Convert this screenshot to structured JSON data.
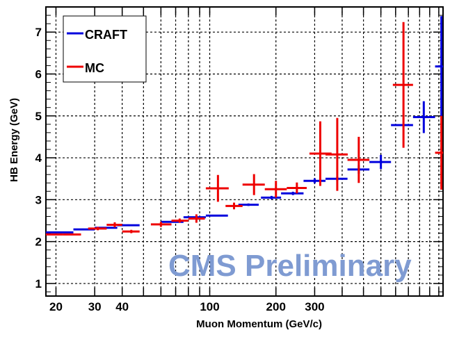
{
  "chart_data": {
    "type": "scatter",
    "title": "",
    "xlabel": "Muon Momentum (GeV/c)",
    "ylabel": "HB Energy (GeV)",
    "xscale": "log",
    "xlim": [
      18,
      1150
    ],
    "ylim": [
      0.7,
      7.6
    ],
    "grid": true,
    "legend_position": "top-left",
    "xticks": [
      20,
      30,
      40,
      100,
      200,
      300
    ],
    "yticks": [
      1,
      2,
      3,
      4,
      5,
      6,
      7
    ],
    "watermark": "CMS Preliminary",
    "colors": {
      "CRAFT": "#0000dd",
      "MC": "#ee0000",
      "watermark": "#7f9bd2"
    },
    "series": [
      {
        "name": "CRAFT",
        "color": "#0000dd",
        "points": [
          {
            "x": 21,
            "xlo": 18,
            "xhi": 24,
            "y": 2.22,
            "yerr": 0.02
          },
          {
            "x": 26.5,
            "xlo": 24,
            "xhi": 30,
            "y": 2.29,
            "yerr": 0.02
          },
          {
            "x": 33.5,
            "xlo": 30,
            "xhi": 38,
            "y": 2.33,
            "yerr": 0.02
          },
          {
            "x": 42.5,
            "xlo": 38,
            "xhi": 48,
            "y": 2.39,
            "yerr": 0.02
          },
          {
            "x": 68,
            "xlo": 60,
            "xhi": 76,
            "y": 2.47,
            "yerr": 0.02
          },
          {
            "x": 86,
            "xlo": 76,
            "xhi": 96,
            "y": 2.58,
            "yerr": 0.02
          },
          {
            "x": 108,
            "xlo": 96,
            "xhi": 121,
            "y": 2.62,
            "yerr": 0.02
          },
          {
            "x": 150,
            "xlo": 135,
            "xhi": 167,
            "y": 2.88,
            "yerr": 0.03
          },
          {
            "x": 191,
            "xlo": 171,
            "xhi": 211,
            "y": 3.05,
            "yerr": 0.04
          },
          {
            "x": 239,
            "xlo": 211,
            "xhi": 267,
            "y": 3.15,
            "yerr": 0.04
          },
          {
            "x": 300,
            "xlo": 267,
            "xhi": 336,
            "y": 3.45,
            "yerr": 0.06
          },
          {
            "x": 380,
            "xlo": 336,
            "xhi": 423,
            "y": 3.5,
            "yerr": 0.05
          },
          {
            "x": 476,
            "xlo": 423,
            "xhi": 532,
            "y": 3.72,
            "yerr": 0.1
          },
          {
            "x": 600,
            "xlo": 532,
            "xhi": 667,
            "y": 3.9,
            "yerr": 0.17
          },
          {
            "x": 750,
            "xlo": 667,
            "xhi": 840,
            "y": 4.78,
            "yerr": 0.01
          },
          {
            "x": 940,
            "xlo": 840,
            "xhi": 1058,
            "y": 4.97,
            "yerr": 0.38
          },
          {
            "x": 1130,
            "xlo": 1058,
            "xhi": 1150,
            "y": 6.18,
            "yerr": 1.2
          }
        ]
      },
      {
        "name": "MC",
        "color": "#ee0000",
        "points": [
          {
            "x": 20,
            "xlo": 18,
            "xhi": 21.5,
            "y": 2.17,
            "yerr": 0.02
          },
          {
            "x": 23.5,
            "xlo": 21.5,
            "xhi": 26,
            "y": 2.17,
            "yerr": 0.02
          },
          {
            "x": 31,
            "xlo": 28,
            "xhi": 34,
            "y": 2.31,
            "yerr": 0.04
          },
          {
            "x": 37,
            "xlo": 34,
            "xhi": 40,
            "y": 2.4,
            "yerr": 0.06
          },
          {
            "x": 44,
            "xlo": 40,
            "xhi": 48,
            "y": 2.24,
            "yerr": 0.04
          },
          {
            "x": 60,
            "xlo": 54,
            "xhi": 67,
            "y": 2.41,
            "yerr": 0.06
          },
          {
            "x": 73,
            "xlo": 67,
            "xhi": 80,
            "y": 2.5,
            "yerr": 0.05
          },
          {
            "x": 87,
            "xlo": 80,
            "xhi": 95,
            "y": 2.55,
            "yerr": 0.1
          },
          {
            "x": 109,
            "xlo": 96,
            "xhi": 122,
            "y": 3.27,
            "yerr": 0.32
          },
          {
            "x": 129,
            "xlo": 118,
            "xhi": 141,
            "y": 2.85,
            "yerr": 0.08
          },
          {
            "x": 159,
            "xlo": 141,
            "xhi": 178,
            "y": 3.36,
            "yerr": 0.25
          },
          {
            "x": 200,
            "xlo": 178,
            "xhi": 224,
            "y": 3.25,
            "yerr": 0.2
          },
          {
            "x": 249,
            "xlo": 224,
            "xhi": 276,
            "y": 3.28,
            "yerr": 0.13
          },
          {
            "x": 318,
            "xlo": 284,
            "xhi": 358,
            "y": 4.1,
            "yerr": 0.77
          },
          {
            "x": 380,
            "xlo": 336,
            "xhi": 424,
            "y": 4.08,
            "yerr": 0.87
          },
          {
            "x": 476,
            "xlo": 423,
            "xhi": 532,
            "y": 3.95,
            "yerr": 0.55
          },
          {
            "x": 760,
            "xlo": 680,
            "xhi": 840,
            "y": 5.74,
            "yerr": 1.5
          },
          {
            "x": 1130,
            "xlo": 1058,
            "xhi": 1150,
            "y": 4.12,
            "yerr": 0.88
          }
        ]
      }
    ]
  }
}
